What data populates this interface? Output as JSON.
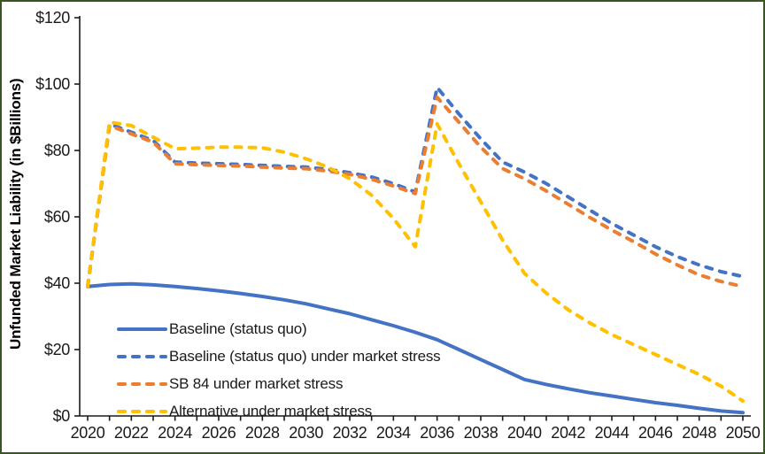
{
  "page": {
    "frame_border_color": "#375623",
    "background_color": "#ffffff",
    "axis_color": "#1a1a1a",
    "text_color": "#1a1a1a"
  },
  "chart_data": {
    "type": "line",
    "title": "",
    "xlabel": "",
    "ylabel": "Unfunded Market Liability (in $Billions)",
    "units": "$Billions",
    "ylim": [
      0,
      120
    ],
    "yticks": [
      0,
      20,
      40,
      60,
      80,
      100,
      120
    ],
    "ytick_labels": [
      "$0",
      "$20",
      "$40",
      "$60",
      "$80",
      "$100",
      "$120"
    ],
    "xlim": [
      2020,
      2050
    ],
    "xtick_labels": [
      "2020",
      "2022",
      "2024",
      "2026",
      "2028",
      "2030",
      "2032",
      "2034",
      "2036",
      "2038",
      "2040",
      "2042",
      "2044",
      "2046",
      "2048",
      "2050"
    ],
    "grid": false,
    "legend_position": "inside-bottom-left",
    "years": [
      2020,
      2021,
      2022,
      2023,
      2024,
      2025,
      2026,
      2027,
      2028,
      2029,
      2030,
      2031,
      2032,
      2033,
      2034,
      2035,
      2036,
      2037,
      2038,
      2039,
      2040,
      2041,
      2042,
      2043,
      2044,
      2045,
      2046,
      2047,
      2048,
      2049,
      2050
    ],
    "series": [
      {
        "name": "Baseline (status quo)",
        "color": "#4472C4",
        "dash": "solid",
        "values": [
          39,
          39.6,
          39.8,
          39.5,
          39,
          38.4,
          37.7,
          36.9,
          36,
          35,
          33.8,
          32.3,
          30.8,
          29,
          27.2,
          25.2,
          23,
          20,
          17,
          14,
          11,
          9.5,
          8.2,
          7,
          6,
          5,
          4,
          3.2,
          2.3,
          1.5,
          1
        ]
      },
      {
        "name": "Baseline (status quo) under market stress",
        "color": "#4472C4",
        "dash": "dashed",
        "values": [
          39,
          88,
          85.5,
          83,
          76.5,
          76.2,
          76,
          75.8,
          75.5,
          75.2,
          75,
          74.3,
          73.3,
          72,
          70,
          67.5,
          99,
          91,
          83.5,
          76.5,
          73.5,
          70,
          66,
          62,
          58,
          54.5,
          51,
          48,
          45.5,
          43.5,
          42
        ]
      },
      {
        "name": "SB 84 under market stress",
        "color": "#ED7D31",
        "dash": "dashed",
        "values": [
          39,
          87.5,
          85,
          82.5,
          76,
          75.7,
          75.5,
          75.3,
          75,
          74.7,
          74.5,
          73.8,
          72.8,
          71.3,
          69.3,
          67,
          96,
          88.5,
          81,
          74.5,
          71.5,
          67.8,
          63.8,
          59.8,
          56,
          52.5,
          48.8,
          45.5,
          42.5,
          40.5,
          39
        ]
      },
      {
        "name": "Alternative under market stress",
        "color": "#FFC000",
        "dash": "dashed",
        "values": [
          39,
          88.5,
          87.5,
          84,
          80.5,
          80.7,
          81,
          81,
          80.8,
          79.5,
          77.5,
          75,
          71.5,
          66.5,
          59.5,
          51,
          88,
          76,
          64.5,
          53,
          43,
          37,
          32,
          28,
          24.5,
          21.5,
          18.5,
          15.5,
          12.5,
          9,
          4.5
        ]
      }
    ]
  }
}
